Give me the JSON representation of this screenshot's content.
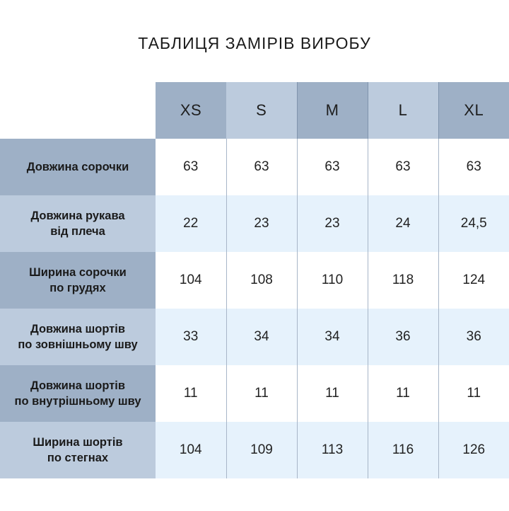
{
  "title": "ТАБЛИЦЯ ЗАМІРІВ ВИРОБУ",
  "sizes": [
    "XS",
    "S",
    "M",
    "L",
    "XL"
  ],
  "rows": [
    {
      "label_lines": [
        "Довжина сорочки"
      ],
      "values": [
        "63",
        "63",
        "63",
        "63",
        "63"
      ]
    },
    {
      "label_lines": [
        "Довжина рукава",
        "від плеча"
      ],
      "values": [
        "22",
        "23",
        "23",
        "24",
        "24,5"
      ]
    },
    {
      "label_lines": [
        "Ширина сорочки",
        "по грудях"
      ],
      "values": [
        "104",
        "108",
        "110",
        "118",
        "124"
      ]
    },
    {
      "label_lines": [
        "Довжина шортів",
        "по зовнішньому шву"
      ],
      "values": [
        "33",
        "34",
        "34",
        "36",
        "36"
      ]
    },
    {
      "label_lines": [
        "Довжина шортів",
        "по внутрішньому шву"
      ],
      "values": [
        "11",
        "11",
        "11",
        "11",
        "11"
      ]
    },
    {
      "label_lines": [
        "Ширина шортів",
        "по стегнах"
      ],
      "values": [
        "104",
        "109",
        "113",
        "116",
        "126"
      ]
    }
  ],
  "colors": {
    "header_dark": "#9eb0c6",
    "header_light": "#bccbdd",
    "row_white": "#ffffff",
    "row_tint": "#e6f2fc"
  }
}
